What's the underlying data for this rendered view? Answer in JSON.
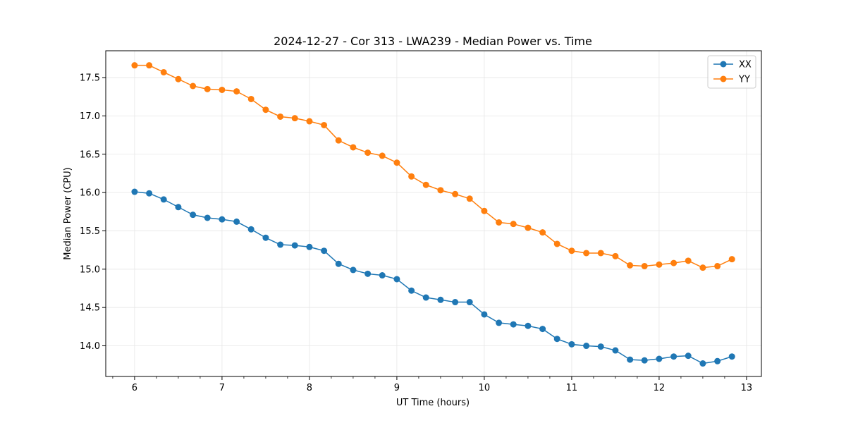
{
  "chart_data": {
    "type": "line",
    "title": "2024-12-27 - Cor 313 - LWA239 - Median Power vs. Time",
    "xlabel": "UT Time (hours)",
    "ylabel": "Median Power (CPU)",
    "xlim": [
      5.67,
      13.17
    ],
    "ylim": [
      13.6,
      17.85
    ],
    "xticks": [
      6,
      7,
      8,
      9,
      10,
      11,
      12,
      13
    ],
    "xtick_labels": [
      "6",
      "7",
      "8",
      "9",
      "10",
      "11",
      "12",
      "13"
    ],
    "xminor_step": 0.25,
    "yticks": [
      14.0,
      14.5,
      15.0,
      15.5,
      16.0,
      16.5,
      17.0,
      17.5
    ],
    "ytick_labels": [
      "14.0",
      "14.5",
      "15.0",
      "15.5",
      "16.0",
      "16.5",
      "17.0",
      "17.5"
    ],
    "grid": true,
    "legend_position": "top-right",
    "x": [
      6.0,
      6.167,
      6.333,
      6.5,
      6.667,
      6.833,
      7.0,
      7.167,
      7.333,
      7.5,
      7.667,
      7.833,
      8.0,
      8.167,
      8.333,
      8.5,
      8.667,
      8.833,
      9.0,
      9.167,
      9.333,
      9.5,
      9.667,
      9.833,
      10.0,
      10.167,
      10.333,
      10.5,
      10.667,
      10.833,
      11.0,
      11.167,
      11.333,
      11.5,
      11.667,
      11.833,
      12.0,
      12.167,
      12.333,
      12.5,
      12.667,
      12.833
    ],
    "series": [
      {
        "name": "XX",
        "color": "#1f77b4",
        "values": [
          16.01,
          15.99,
          15.91,
          15.81,
          15.71,
          15.67,
          15.65,
          15.62,
          15.52,
          15.41,
          15.32,
          15.31,
          15.29,
          15.24,
          15.07,
          14.99,
          14.94,
          14.92,
          14.87,
          14.72,
          14.63,
          14.6,
          14.57,
          14.57,
          14.41,
          14.3,
          14.28,
          14.26,
          14.22,
          14.09,
          14.02,
          14.0,
          13.99,
          13.94,
          13.82,
          13.81,
          13.83,
          13.86,
          13.87,
          13.77,
          13.8,
          13.86
        ]
      },
      {
        "name": "YY",
        "color": "#ff7f0e",
        "values": [
          17.66,
          17.66,
          17.57,
          17.48,
          17.39,
          17.35,
          17.34,
          17.32,
          17.22,
          17.08,
          16.99,
          16.97,
          16.93,
          16.88,
          16.68,
          16.59,
          16.52,
          16.48,
          16.39,
          16.21,
          16.1,
          16.03,
          15.98,
          15.92,
          15.76,
          15.61,
          15.59,
          15.54,
          15.48,
          15.33,
          15.24,
          15.21,
          15.21,
          15.17,
          15.05,
          15.04,
          15.06,
          15.08,
          15.11,
          15.02,
          15.04,
          15.13
        ]
      }
    ]
  }
}
